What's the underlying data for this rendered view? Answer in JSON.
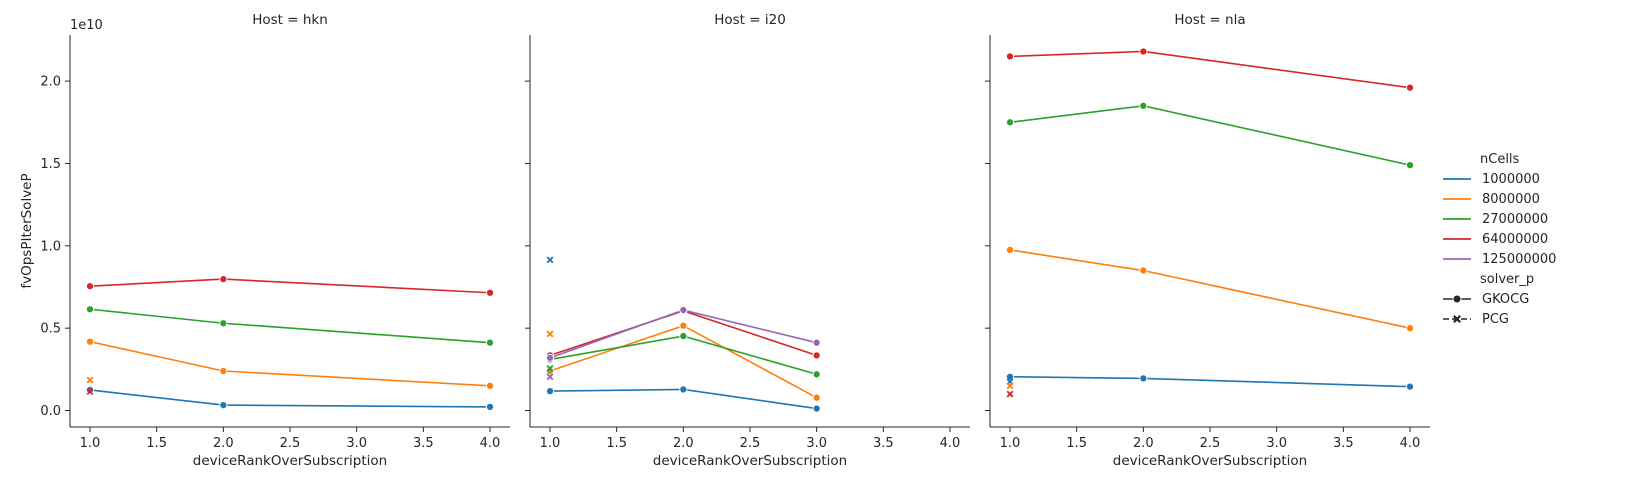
{
  "chart_data": {
    "type": "line",
    "layout": "facet-grid",
    "facet_label_prefix": "Host = ",
    "xlabel": "deviceRankOverSubscription",
    "ylabel": "fvOpsPIterSolveP",
    "y_offset_label": "1e10",
    "xlim": [
      0.85,
      4.15
    ],
    "ylim": [
      -1000000000.0,
      22800000000.0
    ],
    "xticks": [
      1.0,
      1.5,
      2.0,
      2.5,
      3.0,
      3.5,
      4.0
    ],
    "yticks": [
      0.0,
      5000000000.0,
      10000000000.0,
      15000000000.0,
      20000000000.0
    ],
    "ytick_labels": [
      "0.0",
      "0.5",
      "1.0",
      "1.5",
      "2.0"
    ],
    "xtick_labels": [
      "1.0",
      "1.5",
      "2.0",
      "2.5",
      "3.0",
      "3.5",
      "4.0"
    ],
    "hue_title": "nCells",
    "style_title": "solver_p",
    "hue_levels": [
      {
        "name": "1000000",
        "color": "#1f77b4"
      },
      {
        "name": "8000000",
        "color": "#ff7f0e"
      },
      {
        "name": "27000000",
        "color": "#2ca02c"
      },
      {
        "name": "64000000",
        "color": "#d62728"
      },
      {
        "name": "125000000",
        "color": "#9467bd"
      }
    ],
    "style_levels": [
      {
        "name": "GKOCG",
        "marker": "circle",
        "line": "solid"
      },
      {
        "name": "PCG",
        "marker": "x",
        "line": "dashed"
      }
    ],
    "panels": [
      {
        "host": "hkn",
        "series": [
          {
            "nCells": "1000000",
            "solver": "GKOCG",
            "x": [
              1,
              2,
              4
            ],
            "y": [
              1250000000.0,
              330000000.0,
              220000000.0
            ]
          },
          {
            "nCells": "8000000",
            "solver": "GKOCG",
            "x": [
              1,
              2,
              4
            ],
            "y": [
              4180000000.0,
              2400000000.0,
              1500000000.0
            ]
          },
          {
            "nCells": "27000000",
            "solver": "GKOCG",
            "x": [
              1,
              2,
              4
            ],
            "y": [
              6150000000.0,
              5300000000.0,
              4120000000.0
            ]
          },
          {
            "nCells": "64000000",
            "solver": "GKOCG",
            "x": [
              1,
              2,
              4
            ],
            "y": [
              7550000000.0,
              7980000000.0,
              7150000000.0
            ]
          },
          {
            "nCells": "8000000",
            "solver": "PCG",
            "x": [
              1
            ],
            "y": [
              1850000000.0
            ]
          },
          {
            "nCells": "64000000",
            "solver": "PCG",
            "x": [
              1
            ],
            "y": [
              1150000000.0
            ]
          }
        ]
      },
      {
        "host": "i20",
        "series": [
          {
            "nCells": "1000000",
            "solver": "GKOCG",
            "x": [
              1,
              2,
              3
            ],
            "y": [
              1180000000.0,
              1280000000.0,
              120000000.0
            ]
          },
          {
            "nCells": "8000000",
            "solver": "GKOCG",
            "x": [
              1,
              2,
              3
            ],
            "y": [
              2400000000.0,
              5150000000.0,
              780000000.0
            ]
          },
          {
            "nCells": "27000000",
            "solver": "GKOCG",
            "x": [
              1,
              2,
              3
            ],
            "y": [
              3100000000.0,
              4520000000.0,
              2200000000.0
            ]
          },
          {
            "nCells": "64000000",
            "solver": "GKOCG",
            "x": [
              1,
              2,
              3
            ],
            "y": [
              3350000000.0,
              6050000000.0,
              3350000000.0
            ]
          },
          {
            "nCells": "125000000",
            "solver": "GKOCG",
            "x": [
              1,
              2,
              3
            ],
            "y": [
              3200000000.0,
              6100000000.0,
              4120000000.0
            ]
          },
          {
            "nCells": "1000000",
            "solver": "PCG",
            "x": [
              1
            ],
            "y": [
              9150000000.0
            ]
          },
          {
            "nCells": "8000000",
            "solver": "PCG",
            "x": [
              1
            ],
            "y": [
              4650000000.0
            ]
          },
          {
            "nCells": "27000000",
            "solver": "PCG",
            "x": [
              1
            ],
            "y": [
              2550000000.0
            ]
          },
          {
            "nCells": "125000000",
            "solver": "PCG",
            "x": [
              1
            ],
            "y": [
              2050000000.0
            ]
          }
        ]
      },
      {
        "host": "nla",
        "series": [
          {
            "nCells": "1000000",
            "solver": "GKOCG",
            "x": [
              1,
              2,
              4
            ],
            "y": [
              2050000000.0,
              1950000000.0,
              1450000000.0
            ]
          },
          {
            "nCells": "8000000",
            "solver": "GKOCG",
            "x": [
              1,
              2,
              4
            ],
            "y": [
              9750000000.0,
              8500000000.0,
              5000000000.0
            ]
          },
          {
            "nCells": "27000000",
            "solver": "GKOCG",
            "x": [
              1,
              2,
              4
            ],
            "y": [
              17500000000.0,
              18500000000.0,
              14900000000.0
            ]
          },
          {
            "nCells": "64000000",
            "solver": "GKOCG",
            "x": [
              1,
              2,
              4
            ],
            "y": [
              21500000000.0,
              21800000000.0,
              19600000000.0
            ]
          },
          {
            "nCells": "1000000",
            "solver": "PCG",
            "x": [
              1
            ],
            "y": [
              1750000000.0
            ]
          },
          {
            "nCells": "8000000",
            "solver": "PCG",
            "x": [
              1
            ],
            "y": [
              1500000000.0
            ]
          },
          {
            "nCells": "64000000",
            "solver": "PCG",
            "x": [
              1
            ],
            "y": [
              1000000000.0
            ]
          }
        ]
      }
    ]
  }
}
